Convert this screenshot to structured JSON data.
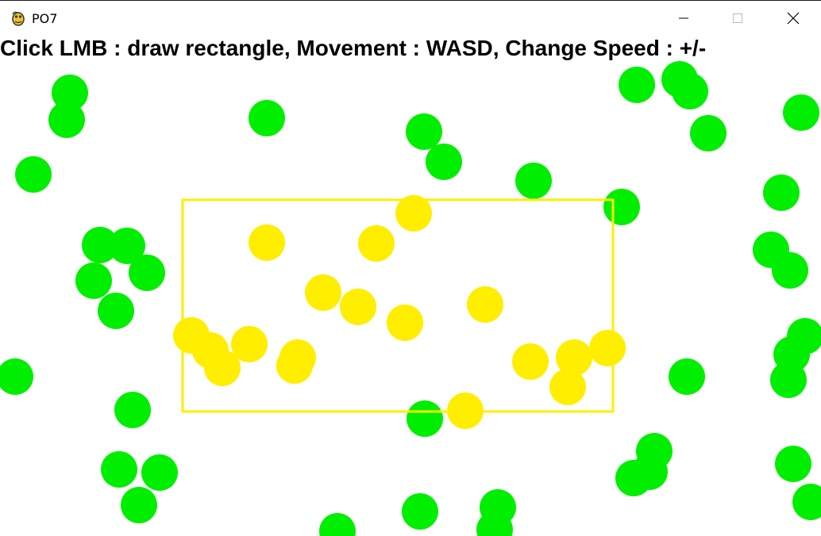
{
  "window": {
    "title": "PO7",
    "icon": "python-snake-icon",
    "controls": [
      "minimize-icon",
      "maximize-icon",
      "close-icon"
    ]
  },
  "instructions": "Click LMB : draw rectangle, Movement : WASD, Change Speed : +/-",
  "colors": {
    "outside_ball": "#00ee00",
    "inside_ball": "#ffee00",
    "selection_rect": "#ffee00",
    "background": "#ffffff",
    "text": "#000000"
  }
}
